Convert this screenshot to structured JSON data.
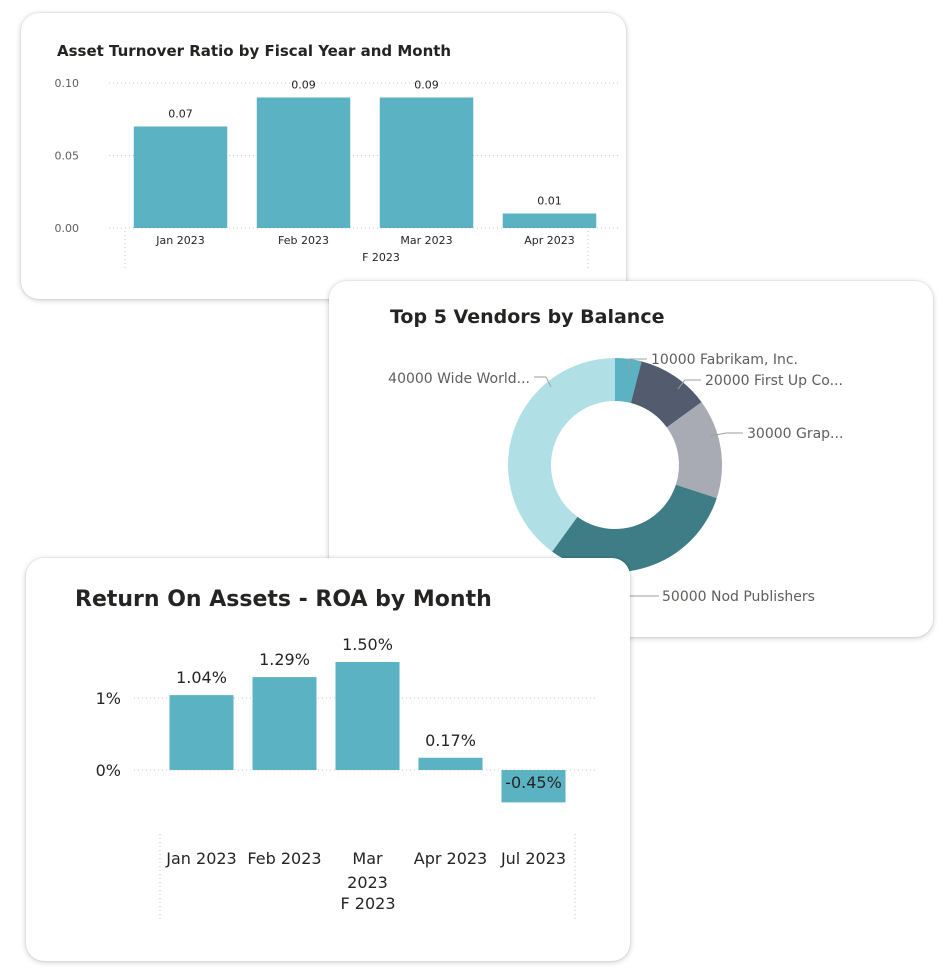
{
  "colors": {
    "bar": "#5ab2c2",
    "grid": "#c8c6c4",
    "text": "#252423",
    "muted": "#605e5c",
    "donut": [
      "#5ab2c2",
      "#525c6e",
      "#a8abb3",
      "#3f7d86",
      "#b0e0e6"
    ]
  },
  "chart_data": [
    {
      "type": "bar",
      "title": "Asset Turnover Ratio by Fiscal Year and Month",
      "categories": [
        "Jan 2023",
        "Feb 2023",
        "Mar 2023",
        "Apr 2023"
      ],
      "group_label": "F 2023",
      "values": [
        0.07,
        0.09,
        0.09,
        0.01
      ],
      "data_labels": [
        "0.07",
        "0.09",
        "0.09",
        "0.01"
      ],
      "yticks": [
        0.0,
        0.05,
        0.1
      ],
      "ytick_labels": [
        "0.00",
        "0.05",
        "0.10"
      ],
      "ylim": [
        0,
        0.1
      ],
      "xlabel": "",
      "ylabel": "",
      "grid": true
    },
    {
      "type": "pie",
      "title": "Top 5 Vendors by Balance",
      "donut": true,
      "labels": [
        "10000 Fabrikam, Inc.",
        "20000 First Up Co...",
        "30000 Grap...",
        "50000 Nod Publishers",
        "40000 Wide World..."
      ],
      "shares": [
        0.04,
        0.11,
        0.15,
        0.3,
        0.4
      ]
    },
    {
      "type": "bar",
      "title": "Return On Assets - ROA by Month",
      "categories": [
        "Jan 2023",
        "Feb 2023",
        "Mar 2023",
        "Apr 2023",
        "Jul 2023"
      ],
      "category_lines": [
        [
          "Jan 2023"
        ],
        [
          "Feb 2023"
        ],
        [
          "Mar",
          "2023"
        ],
        [
          "Apr 2023"
        ],
        [
          "Jul 2023"
        ]
      ],
      "group_label": "F 2023",
      "values": [
        1.04,
        1.29,
        1.5,
        0.17,
        -0.45
      ],
      "data_labels": [
        "1.04%",
        "1.29%",
        "1.50%",
        "0.17%",
        "-0.45%"
      ],
      "yticks": [
        0,
        1
      ],
      "ytick_labels": [
        "0%",
        "1%"
      ],
      "unit": "%",
      "ylim": [
        -0.5,
        1.6
      ],
      "xlabel": "",
      "ylabel": "",
      "grid": true
    }
  ]
}
